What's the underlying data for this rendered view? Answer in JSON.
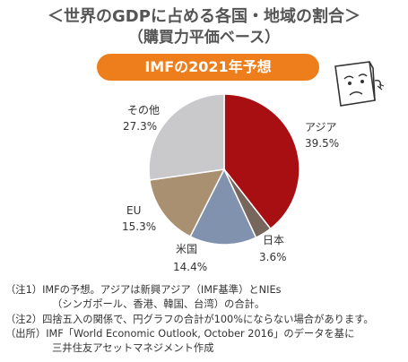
{
  "title_line1": "＜世界のGDPに占める各国・地域の割合＞",
  "title_line2": "（購買力平価ベース）",
  "banner": "IMFの2021年予想",
  "chart_data": {
    "type": "pie",
    "slices": [
      {
        "name": "アジア",
        "value": 39.5,
        "label": "39.5%",
        "color": "#a70f12"
      },
      {
        "name": "日本",
        "value": 3.6,
        "label": "3.6%",
        "color": "#76665c"
      },
      {
        "name": "米国",
        "value": 14.4,
        "label": "14.4%",
        "color": "#8192af"
      },
      {
        "name": "EU",
        "value": 15.3,
        "label": "15.3%",
        "color": "#a89070"
      },
      {
        "name": "その他",
        "value": 27.3,
        "label": "27.3%",
        "color": "#c9c9cc"
      }
    ]
  },
  "notes": {
    "note1_line1": "（注1）IMFの予想。アジアは新興アジア（IMF基準）とNIEs",
    "note1_line2": "（シンガポール、香港、韓国、台湾）の合計。",
    "note2": "（注2）四捨五入の関係で、円グラフの合計が100%にならない場合があります。",
    "source_line1": "（出所）IMF「World Economic Outlook, October 2016」のデータを基に",
    "source_line2": "三井住友アセットマネジメント作成"
  }
}
